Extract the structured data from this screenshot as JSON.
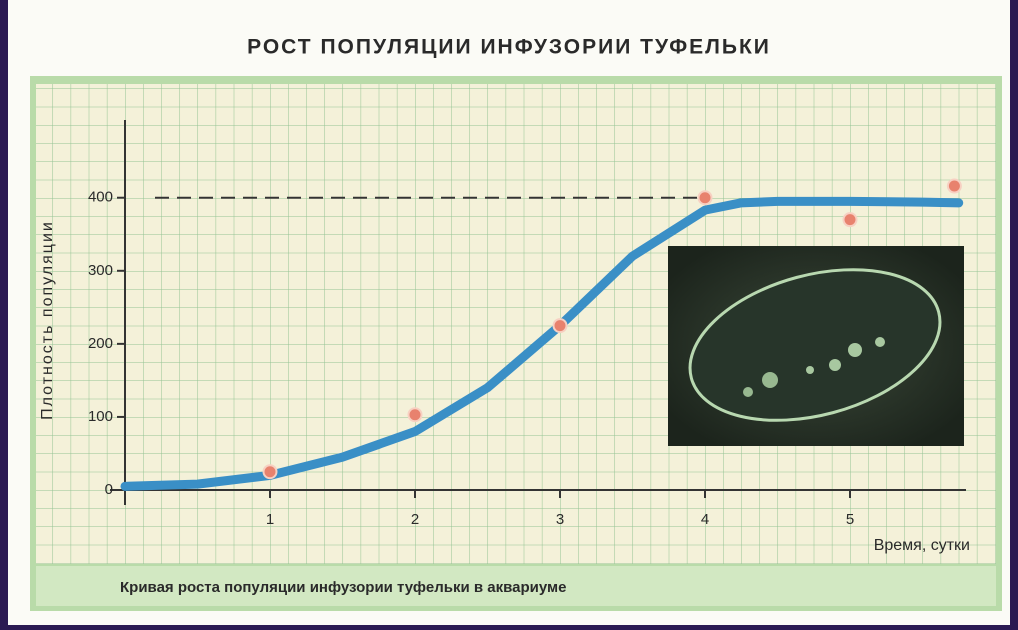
{
  "chart_data": {
    "type": "line",
    "title": "РОСТ ПОПУЛЯЦИИ ИНФУЗОРИИ ТУФЕЛЬКИ",
    "y_label": "Плотность популяции",
    "x_label": "Время, сутки",
    "caption": "Кривая роста популяции инфузории туфельки в аквариуме",
    "xlim": [
      0,
      5.8
    ],
    "ylim": [
      0,
      505
    ],
    "xticks": [
      1,
      2,
      3,
      4,
      5
    ],
    "yticks": [
      0,
      100,
      200,
      300,
      400
    ],
    "reference_line": 400,
    "curve": {
      "color": "#3a8fc6",
      "x": [
        0,
        0.5,
        1,
        1.5,
        2,
        2.5,
        3,
        3.5,
        4,
        4.25,
        4.5,
        5,
        5.5,
        5.75
      ],
      "values": [
        5,
        8,
        20,
        45,
        80,
        140,
        225,
        320,
        383,
        393,
        395,
        395,
        394,
        393
      ]
    },
    "observations": {
      "color": "#e8826e",
      "x": [
        1,
        2,
        3,
        4,
        5,
        5.72
      ],
      "values": [
        25,
        103,
        225,
        400,
        370,
        416
      ]
    }
  }
}
